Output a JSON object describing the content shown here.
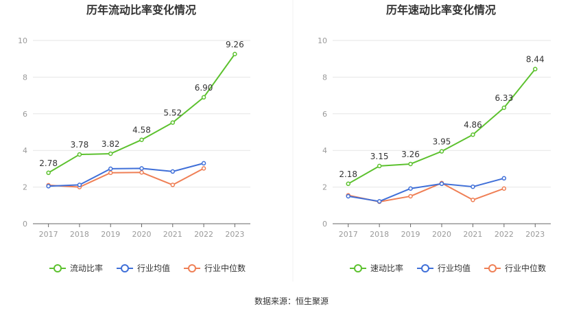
{
  "source_text": "数据来源：恒生聚源",
  "colors": {
    "primary": "#5cc12e",
    "industry_avg": "#3f6fd8",
    "industry_median": "#ef7f55",
    "grid": "#e6e6e6",
    "axis": "#666666",
    "tick_text": "#999999",
    "title": "#333333"
  },
  "chart_data": [
    {
      "type": "line",
      "title": "历年流动比率变化情况",
      "xlabel": "",
      "ylabel": "",
      "ylim": [
        0,
        10
      ],
      "yticks": [
        0,
        2,
        4,
        6,
        8,
        10
      ],
      "categories": [
        "2017",
        "2018",
        "2019",
        "2020",
        "2021",
        "2022",
        "2023"
      ],
      "grid": true,
      "legend_position": "bottom",
      "series": [
        {
          "name": "流动比率",
          "values": [
            2.78,
            3.78,
            3.82,
            4.58,
            5.52,
            6.9,
            9.26
          ],
          "labels": [
            "2.78",
            "3.78",
            "3.82",
            "4.58",
            "5.52",
            "6.90",
            "9.26"
          ]
        },
        {
          "name": "行业均值",
          "values": [
            2.05,
            2.12,
            3.0,
            3.02,
            2.85,
            3.3,
            null
          ]
        },
        {
          "name": "行业中位数",
          "values": [
            2.1,
            2.0,
            2.78,
            2.8,
            2.12,
            3.02,
            null
          ]
        }
      ]
    },
    {
      "type": "line",
      "title": "历年速动比率变化情况",
      "xlabel": "",
      "ylabel": "",
      "ylim": [
        0,
        10
      ],
      "yticks": [
        0,
        2,
        4,
        6,
        8,
        10
      ],
      "categories": [
        "2017",
        "2018",
        "2019",
        "2020",
        "2021",
        "2022",
        "2023"
      ],
      "grid": true,
      "legend_position": "bottom",
      "series": [
        {
          "name": "速动比率",
          "values": [
            2.18,
            3.15,
            3.26,
            3.95,
            4.86,
            6.33,
            8.44
          ],
          "labels": [
            "2.18",
            "3.15",
            "3.26",
            "3.95",
            "4.86",
            "6.33",
            "8.44"
          ]
        },
        {
          "name": "行业均值",
          "values": [
            1.5,
            1.22,
            1.92,
            2.18,
            2.02,
            2.48,
            null
          ]
        },
        {
          "name": "行业中位数",
          "values": [
            1.55,
            1.2,
            1.5,
            2.22,
            1.3,
            1.92,
            null
          ]
        }
      ]
    }
  ]
}
